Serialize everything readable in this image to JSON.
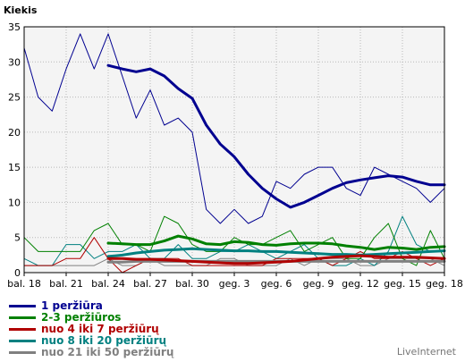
{
  "chart_data": {
    "type": "line",
    "ylabel": "Kiekis",
    "ylim": [
      0,
      35
    ],
    "yticks": [
      0,
      5,
      10,
      15,
      20,
      25,
      30,
      35
    ],
    "grid": true,
    "xtick_labels": [
      "bal. 18",
      "bal. 21",
      "bal. 24",
      "bal. 27",
      "bal. 30",
      "geg. 3",
      "geg. 6",
      "geg. 9",
      "geg. 12",
      "geg. 15",
      "geg. 18"
    ],
    "legend_position": "bottom-left",
    "series": [
      {
        "name": "1 peržiūra",
        "color": "#000090",
        "raw": [
          32,
          25,
          23,
          29,
          34,
          29,
          34,
          28,
          22,
          26,
          21,
          22,
          20,
          9,
          7,
          9,
          7,
          8,
          13,
          12,
          14,
          15,
          15,
          12,
          11,
          15,
          14,
          13,
          12,
          10,
          12
        ],
        "trend_start": 6,
        "trend": [
          29.5,
          29,
          28.6,
          29,
          28,
          26.2,
          24.8,
          21,
          18.3,
          16.5,
          14,
          12,
          10.5,
          9.3,
          10,
          11,
          12,
          12.8,
          13.2,
          13.5,
          13.8,
          13.6,
          13,
          12.5,
          12.5
        ]
      },
      {
        "name": "2-3 peržiūros",
        "color": "#008000",
        "raw": [
          5,
          3,
          3,
          3,
          3,
          6,
          7,
          4,
          4,
          3,
          8,
          7,
          4,
          3,
          3,
          5,
          4,
          4,
          5,
          6,
          3,
          4,
          5,
          2,
          2,
          5,
          7,
          2,
          1,
          6,
          2
        ],
        "trend_start": 6,
        "trend": [
          4.2,
          4.1,
          4,
          4,
          4.5,
          5.2,
          4.8,
          4.1,
          4,
          4.4,
          4.3,
          4,
          3.9,
          4.1,
          4.2,
          4.2,
          4.1,
          3.8,
          3.6,
          3.3,
          3.6,
          3.5,
          3.3,
          3.6,
          3.7
        ]
      },
      {
        "name": "nuo 4 iki 7 peržiūrų",
        "color": "#b00000",
        "raw": [
          1,
          1,
          1,
          2,
          2,
          5,
          2,
          0,
          1,
          2,
          2,
          2,
          1,
          1,
          1,
          1,
          1,
          1,
          2,
          2,
          2,
          2,
          1,
          2,
          3,
          2,
          2,
          3,
          2,
          1,
          2
        ],
        "trend_start": 6,
        "trend": [
          2,
          2,
          1.9,
          1.9,
          1.8,
          1.7,
          1.6,
          1.5,
          1.4,
          1.3,
          1.3,
          1.4,
          1.5,
          1.6,
          1.8,
          2,
          2.2,
          2.3,
          2.4,
          2.3,
          2.2,
          2.2,
          2.2,
          2.1,
          2
        ]
      },
      {
        "name": "nuo 8 iki 20 peržiūrų",
        "color": "#008080",
        "raw": [
          2,
          1,
          1,
          4,
          4,
          2,
          3,
          3,
          4,
          2,
          2,
          4,
          2,
          2,
          3,
          3,
          4,
          3,
          2,
          3,
          4,
          2,
          1,
          1,
          2,
          1,
          3,
          8,
          4,
          3,
          3
        ],
        "trend_start": 6,
        "trend": [
          2.3,
          2.5,
          2.8,
          3,
          3.2,
          3.3,
          3.4,
          3.3,
          3.2,
          3.1,
          3.1,
          3,
          3,
          2.9,
          2.8,
          2.7,
          2.6,
          2.6,
          2.5,
          2.6,
          2.7,
          2.8,
          2.9,
          3,
          3.1
        ]
      },
      {
        "name": "nuo 21 iki 50 peržiūrų",
        "color": "#808080",
        "raw": [
          1,
          1,
          1,
          1,
          1,
          1,
          2,
          1,
          1,
          2,
          1,
          1,
          1,
          1,
          2,
          2,
          1,
          1,
          1,
          2,
          1,
          2,
          2,
          2,
          1,
          1,
          2,
          2,
          2,
          2,
          1
        ],
        "trend_start": 6,
        "trend": [
          1.5,
          1.5,
          1.6,
          1.6,
          1.6,
          1.6,
          1.6,
          1.6,
          1.6,
          1.6,
          1.6,
          1.6,
          1.6,
          1.6,
          1.6,
          1.6,
          1.6,
          1.6,
          1.6,
          1.6,
          1.6,
          1.6,
          1.6,
          1.6,
          1.6
        ]
      }
    ]
  },
  "footer": {
    "brand": "LiveInternet"
  }
}
